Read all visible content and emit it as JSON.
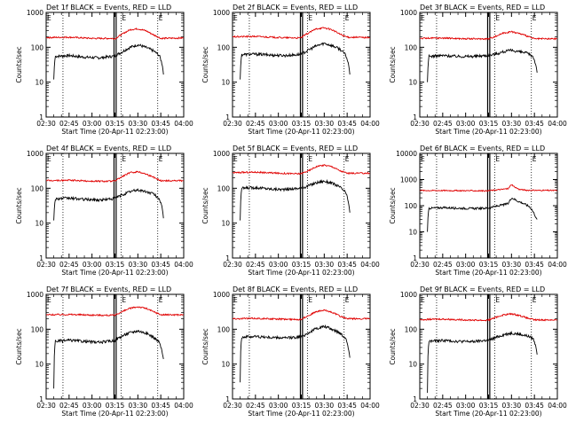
{
  "panel_template": {
    "title_suffix": " BLACK = Events, RED = LLD",
    "xlabel": "Start Time (20-Apr-11 02:23:00)",
    "ylabel": "Counts/sec",
    "x_ticks": [
      "02:30",
      "02:45",
      "03:00",
      "03:15",
      "03:30",
      "03:45",
      "04:00"
    ],
    "x_range_minutes": [
      150,
      240
    ],
    "dotted_lines_minutes": [
      146,
      161,
      199,
      223
    ],
    "solid_lines_minutes": [
      194.4,
      195.8
    ],
    "markers": [
      {
        "label": "E",
        "minute": 145
      },
      {
        "label": "E",
        "minute": 199
      },
      {
        "label": "E",
        "minute": 223
      }
    ],
    "y_scale": "log"
  },
  "colors": {
    "events": "#000000",
    "lld": "#e00000"
  },
  "chart_data": [
    {
      "type": "line",
      "title": "Det 1f",
      "ylim": [
        1,
        1000
      ],
      "y_ticks": [
        "1",
        "10",
        "100",
        "1000"
      ],
      "series": [
        {
          "name": "Events",
          "x": [
            155,
            156,
            165,
            175,
            185,
            193,
            195,
            200,
            205,
            210,
            215,
            220,
            224,
            226,
            227
          ],
          "y": [
            12,
            55,
            58,
            52,
            50,
            55,
            56,
            75,
            100,
            118,
            100,
            80,
            58,
            30,
            12
          ]
        },
        {
          "name": "LLD",
          "x": [
            150,
            165,
            180,
            193,
            195,
            200,
            205,
            210,
            215,
            220,
            225,
            240
          ],
          "y": [
            190,
            195,
            180,
            180,
            175,
            240,
            320,
            340,
            300,
            230,
            180,
            185
          ]
        }
      ]
    },
    {
      "type": "line",
      "title": "Det 2f",
      "ylim": [
        1,
        1000
      ],
      "y_ticks": [
        "1",
        "10",
        "100",
        "1000"
      ],
      "series": [
        {
          "name": "Events",
          "x": [
            155,
            156,
            165,
            175,
            185,
            193,
            195,
            200,
            205,
            210,
            215,
            220,
            224,
            226,
            227
          ],
          "y": [
            12,
            62,
            64,
            60,
            58,
            62,
            62,
            85,
            110,
            130,
            112,
            90,
            60,
            30,
            12
          ]
        },
        {
          "name": "LLD",
          "x": [
            150,
            165,
            180,
            193,
            195,
            200,
            205,
            210,
            215,
            220,
            225,
            240
          ],
          "y": [
            200,
            205,
            190,
            185,
            190,
            260,
            340,
            360,
            320,
            240,
            195,
            190
          ]
        }
      ]
    },
    {
      "type": "line",
      "title": "Det 3f",
      "ylim": [
        1,
        1000
      ],
      "y_ticks": [
        "1",
        "10",
        "100",
        "1000"
      ],
      "series": [
        {
          "name": "Events",
          "x": [
            155,
            156,
            165,
            175,
            185,
            193,
            195,
            200,
            205,
            210,
            215,
            220,
            224,
            226,
            227
          ],
          "y": [
            10,
            55,
            58,
            55,
            55,
            58,
            58,
            65,
            75,
            82,
            75,
            68,
            55,
            30,
            15
          ]
        },
        {
          "name": "LLD",
          "x": [
            150,
            165,
            180,
            193,
            195,
            200,
            205,
            210,
            215,
            220,
            225,
            240
          ],
          "y": [
            180,
            185,
            175,
            175,
            175,
            210,
            260,
            280,
            250,
            210,
            175,
            175
          ]
        }
      ]
    },
    {
      "type": "line",
      "title": "Det 4f",
      "ylim": [
        1,
        1000
      ],
      "y_ticks": [
        "1",
        "10",
        "100",
        "1000"
      ],
      "series": [
        {
          "name": "Events",
          "x": [
            155,
            156,
            165,
            175,
            185,
            193,
            195,
            200,
            205,
            210,
            215,
            220,
            224,
            226,
            227
          ],
          "y": [
            12,
            50,
            52,
            48,
            46,
            50,
            52,
            65,
            80,
            90,
            80,
            70,
            50,
            25,
            10
          ]
        },
        {
          "name": "LLD",
          "x": [
            150,
            165,
            180,
            193,
            195,
            200,
            205,
            210,
            215,
            220,
            225,
            240
          ],
          "y": [
            165,
            170,
            160,
            160,
            160,
            220,
            280,
            300,
            260,
            210,
            165,
            165
          ]
        }
      ]
    },
    {
      "type": "line",
      "title": "Det 5f",
      "ylim": [
        1,
        1000
      ],
      "y_ticks": [
        "1",
        "10",
        "100",
        "1000"
      ],
      "series": [
        {
          "name": "Events",
          "x": [
            155,
            156,
            165,
            175,
            185,
            193,
            195,
            200,
            205,
            210,
            215,
            220,
            224,
            226,
            227
          ],
          "y": [
            12,
            100,
            105,
            95,
            92,
            100,
            100,
            120,
            145,
            160,
            140,
            110,
            75,
            35,
            15
          ]
        },
        {
          "name": "LLD",
          "x": [
            150,
            165,
            180,
            193,
            195,
            200,
            205,
            210,
            215,
            220,
            225,
            240
          ],
          "y": [
            280,
            290,
            270,
            260,
            265,
            320,
            420,
            460,
            420,
            320,
            270,
            270
          ]
        }
      ]
    },
    {
      "type": "line",
      "title": "Det 6f",
      "ylim": [
        1,
        10000
      ],
      "y_ticks": [
        "1",
        "10",
        "100",
        "1000",
        "10000"
      ],
      "series": [
        {
          "name": "Events",
          "x": [
            155,
            156,
            165,
            175,
            185,
            193,
            195,
            200,
            205,
            208,
            210,
            214,
            218,
            222,
            224,
            226,
            227
          ],
          "y": [
            10,
            80,
            85,
            80,
            78,
            80,
            82,
            95,
            110,
            120,
            200,
            150,
            120,
            90,
            60,
            35,
            28
          ]
        },
        {
          "name": "LLD",
          "x": [
            150,
            165,
            180,
            193,
            195,
            200,
            205,
            208,
            210,
            212,
            215,
            220,
            240
          ],
          "y": [
            380,
            380,
            375,
            370,
            375,
            400,
            430,
            450,
            650,
            520,
            420,
            390,
            380
          ]
        }
      ]
    },
    {
      "type": "line",
      "title": "Det 7f",
      "ylim": [
        1,
        1000
      ],
      "y_ticks": [
        "1",
        "10",
        "100",
        "1000"
      ],
      "series": [
        {
          "name": "Events",
          "x": [
            155,
            156,
            165,
            175,
            185,
            193,
            195,
            200,
            205,
            210,
            215,
            220,
            224,
            226,
            227
          ],
          "y": [
            2,
            45,
            48,
            45,
            42,
            46,
            48,
            65,
            80,
            90,
            78,
            60,
            42,
            20,
            12
          ]
        },
        {
          "name": "LLD",
          "x": [
            150,
            165,
            180,
            193,
            195,
            200,
            205,
            210,
            215,
            220,
            225,
            240
          ],
          "y": [
            260,
            265,
            255,
            250,
            255,
            320,
            400,
            440,
            400,
            320,
            260,
            260
          ]
        }
      ]
    },
    {
      "type": "line",
      "title": "Det 8f",
      "ylim": [
        1,
        1000
      ],
      "y_ticks": [
        "1",
        "10",
        "100",
        "1000"
      ],
      "series": [
        {
          "name": "Events",
          "x": [
            155,
            156,
            165,
            175,
            185,
            193,
            195,
            200,
            205,
            210,
            215,
            220,
            224,
            226,
            227
          ],
          "y": [
            3,
            60,
            62,
            58,
            56,
            60,
            60,
            80,
            105,
            120,
            100,
            80,
            55,
            25,
            12
          ]
        },
        {
          "name": "LLD",
          "x": [
            150,
            165,
            180,
            193,
            195,
            200,
            205,
            210,
            215,
            220,
            225,
            240
          ],
          "y": [
            200,
            205,
            195,
            190,
            195,
            250,
            320,
            350,
            310,
            240,
            200,
            200
          ]
        }
      ]
    },
    {
      "type": "line",
      "title": "Det 9f",
      "ylim": [
        1,
        1000
      ],
      "y_ticks": [
        "1",
        "10",
        "100",
        "1000"
      ],
      "series": [
        {
          "name": "Events",
          "x": [
            155,
            156,
            165,
            175,
            185,
            193,
            195,
            200,
            205,
            210,
            215,
            220,
            224,
            226,
            227
          ],
          "y": [
            1.5,
            45,
            48,
            45,
            44,
            48,
            48,
            58,
            70,
            78,
            72,
            65,
            55,
            30,
            15
          ]
        },
        {
          "name": "LLD",
          "x": [
            150,
            165,
            180,
            193,
            195,
            200,
            205,
            210,
            215,
            220,
            225,
            240
          ],
          "y": [
            190,
            195,
            185,
            180,
            185,
            220,
            260,
            275,
            250,
            210,
            185,
            185
          ]
        }
      ]
    }
  ]
}
